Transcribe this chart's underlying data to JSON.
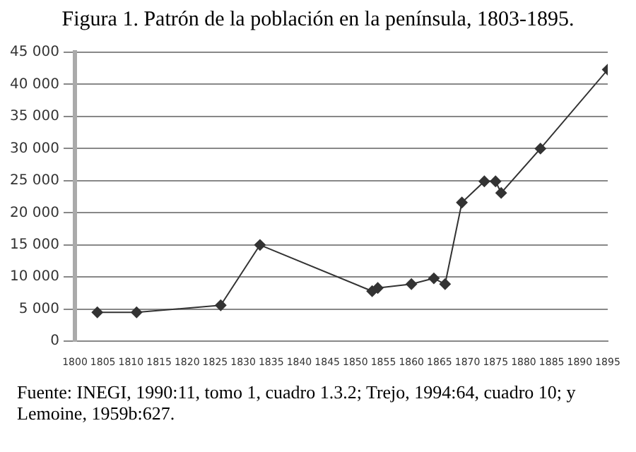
{
  "chart_data": {
    "type": "line",
    "title": "Figura 1. Patrón de la población en la península, 1803-1895.",
    "x": [
      1804,
      1811,
      1826,
      1833,
      1853,
      1854,
      1860,
      1864,
      1866,
      1869,
      1873,
      1875,
      1876,
      1883,
      1895
    ],
    "values": [
      4500,
      4500,
      5600,
      15000,
      7800,
      8300,
      8900,
      9800,
      8900,
      21600,
      24900,
      24900,
      23100,
      30000,
      42300
    ],
    "color": "#333333",
    "marker": "diamond",
    "grid": "y",
    "legend": false,
    "xlim": [
      1800,
      1895
    ],
    "xticks": [
      1800,
      1805,
      1810,
      1815,
      1820,
      1825,
      1830,
      1835,
      1840,
      1845,
      1850,
      1855,
      1860,
      1865,
      1870,
      1875,
      1880,
      1885,
      1890,
      1895
    ],
    "ylim": [
      0,
      45000
    ],
    "yticks": [
      {
        "value": 0,
        "label": "0"
      },
      {
        "value": 5000,
        "label": "5 000"
      },
      {
        "value": 10000,
        "label": "10 000"
      },
      {
        "value": 15000,
        "label": "15 000"
      },
      {
        "value": 20000,
        "label": "20 000"
      },
      {
        "value": 25000,
        "label": "25 000"
      },
      {
        "value": 30000,
        "label": "30 000"
      },
      {
        "value": 35000,
        "label": "35 000"
      },
      {
        "value": 40000,
        "label": "40 000"
      },
      {
        "value": 45000,
        "label": "45 000"
      }
    ],
    "annotations": [
      "Fuente: INEGI, 1990:11, tomo 1, cuadro 1.3.2; Trejo, 1994:64, cuadro 10; y Lemoine, 1959b:627."
    ]
  }
}
